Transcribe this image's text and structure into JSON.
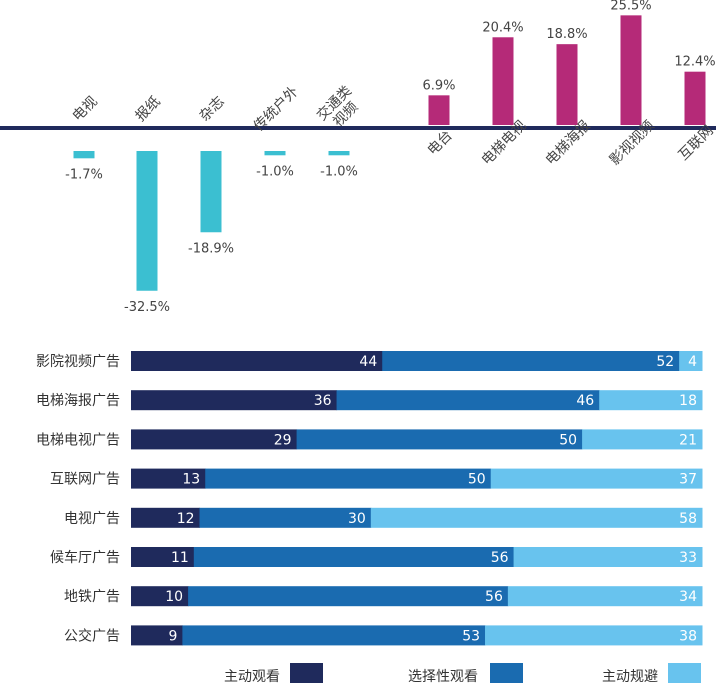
{
  "colors": {
    "axis": "#1f2a5c",
    "negative": "#3bbfd1",
    "positive": "#b52a78",
    "label_text": "#444444",
    "seg_active": "#1f2a5c",
    "seg_selective": "#1a6bb0",
    "seg_avoid": "#68c3ee",
    "seg_text": "#ffffff"
  },
  "chart_data": [
    {
      "type": "bar",
      "title": "",
      "unit": "%",
      "categories": [
        "电视",
        "报纸",
        "杂志",
        "传统户外",
        "交通类\n视频",
        "电台",
        "电梯电视",
        "电梯海报",
        "影视视频",
        "互联网"
      ],
      "values": [
        -1.7,
        -32.5,
        -18.9,
        -1.0,
        -1.0,
        6.9,
        20.4,
        18.8,
        25.5,
        12.4
      ],
      "value_labels": [
        "-1.7%",
        "-32.5%",
        "-18.9%",
        "-1.0%",
        "-1.0%",
        "6.9%",
        "20.4%",
        "18.8%",
        "25.5%",
        "12.4%"
      ],
      "grid": false,
      "legend": "none"
    },
    {
      "type": "bar",
      "orientation": "horizontal",
      "stacked": true,
      "title": "",
      "categories": [
        "影院视频广告",
        "电梯海报广告",
        "电梯电视广告",
        "互联网广告",
        "电视广告",
        "候车厅广告",
        "地铁广告",
        "公交广告"
      ],
      "series": [
        {
          "name": "主动观看",
          "values": [
            44,
            36,
            29,
            13,
            12,
            11,
            10,
            9
          ]
        },
        {
          "name": "选择性观看",
          "values": [
            52,
            46,
            50,
            50,
            30,
            56,
            56,
            53
          ]
        },
        {
          "name": "主动规避",
          "values": [
            4,
            18,
            21,
            37,
            58,
            33,
            34,
            38
          ]
        }
      ],
      "xlim": [
        0,
        100
      ],
      "grid": false,
      "legend": "bottom"
    }
  ]
}
